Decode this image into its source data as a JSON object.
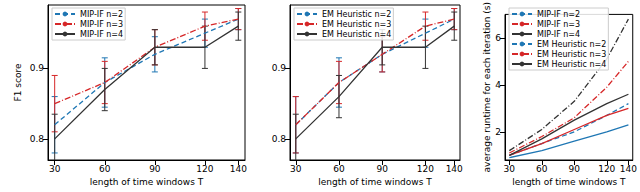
{
  "chart_data": [
    {
      "type": "line",
      "xlabel": "length of time windows T",
      "ylabel": "F1 score",
      "x": [
        30,
        60,
        90,
        120,
        140
      ],
      "xlim": [
        26,
        144
      ],
      "xticks": [
        30,
        60,
        90,
        120,
        140
      ],
      "ylim": [
        0.77,
        0.99
      ],
      "yticks": [
        0.8,
        0.9
      ],
      "legend": "upper left",
      "series": [
        {
          "name": "MIP-IF n=2",
          "color": "#1f77b4",
          "line_style": "dashed",
          "values": [
            0.82,
            0.88,
            0.92,
            0.95,
            0.97
          ],
          "errors": [
            0.04,
            0.035,
            0.025,
            0.02,
            0.015
          ]
        },
        {
          "name": "MIP-IF n=3",
          "color": "#d62728",
          "line_style": "dashdot",
          "values": [
            0.85,
            0.88,
            0.93,
            0.96,
            0.97
          ],
          "errors": [
            0.04,
            0.03,
            0.025,
            0.02,
            0.015
          ]
        },
        {
          "name": "MIP-IF n=4",
          "color": "#333333",
          "line_style": "solid",
          "values": [
            0.8,
            0.87,
            0.93,
            0.93,
            0.96
          ],
          "errors": [
            0.035,
            0.03,
            0.025,
            0.03,
            0.02
          ]
        }
      ]
    },
    {
      "type": "line",
      "xlabel": "length of time windows T",
      "x": [
        30,
        60,
        90,
        120,
        140
      ],
      "xlim": [
        26,
        144
      ],
      "xticks": [
        30,
        60,
        90,
        120,
        140
      ],
      "ylim": [
        0.77,
        0.99
      ],
      "yticks": [
        0.8,
        0.9
      ],
      "legend": "upper left",
      "series": [
        {
          "name": "EM Heuristic n=2",
          "color": "#1f77b4",
          "line_style": "dashed",
          "values": [
            0.82,
            0.88,
            0.92,
            0.95,
            0.97
          ],
          "errors": [
            0.04,
            0.035,
            0.025,
            0.02,
            0.015
          ]
        },
        {
          "name": "EM Heuristic n=3",
          "color": "#d62728",
          "line_style": "dashdot",
          "values": [
            0.82,
            0.88,
            0.92,
            0.96,
            0.97
          ],
          "errors": [
            0.04,
            0.03,
            0.025,
            0.02,
            0.015
          ]
        },
        {
          "name": "EM Heuristic n=4",
          "color": "#333333",
          "line_style": "solid",
          "values": [
            0.8,
            0.86,
            0.93,
            0.93,
            0.96
          ],
          "errors": [
            0.035,
            0.03,
            0.025,
            0.03,
            0.02
          ]
        }
      ]
    },
    {
      "type": "line",
      "xlabel": "length of time windows T",
      "ylabel": "average runtime for each iteration (s)",
      "x": [
        30,
        60,
        90,
        120,
        140
      ],
      "xlim": [
        26,
        144
      ],
      "xticks": [
        30,
        60,
        90,
        120,
        140
      ],
      "ylim": [
        0.8,
        7.0
      ],
      "yticks": [
        2,
        4,
        6
      ],
      "legend": "upper left",
      "series": [
        {
          "name": "MIP-IF n=2",
          "color": "#1f77b4",
          "line_style": "dashed",
          "values": [
            1.0,
            1.5,
            2.0,
            2.7,
            3.2
          ]
        },
        {
          "name": "MIP-IF n=3",
          "color": "#d62728",
          "line_style": "dashdot",
          "values": [
            1.1,
            1.8,
            2.6,
            3.9,
            5.0
          ]
        },
        {
          "name": "MIP-IF n=4",
          "color": "#333333",
          "line_style": "dashdot",
          "values": [
            1.2,
            2.1,
            3.3,
            5.1,
            6.8
          ]
        },
        {
          "name": "EM Heuristic n=2",
          "color": "#1f77b4",
          "line_style": "solid",
          "values": [
            0.9,
            1.2,
            1.6,
            2.0,
            2.3
          ]
        },
        {
          "name": "EM Heuristic n=3",
          "color": "#d62728",
          "line_style": "solid",
          "values": [
            1.0,
            1.5,
            2.1,
            2.7,
            3.0
          ]
        },
        {
          "name": "EM Heuristic n=4",
          "color": "#333333",
          "line_style": "solid",
          "values": [
            1.0,
            1.7,
            2.5,
            3.2,
            3.6
          ]
        }
      ]
    }
  ]
}
